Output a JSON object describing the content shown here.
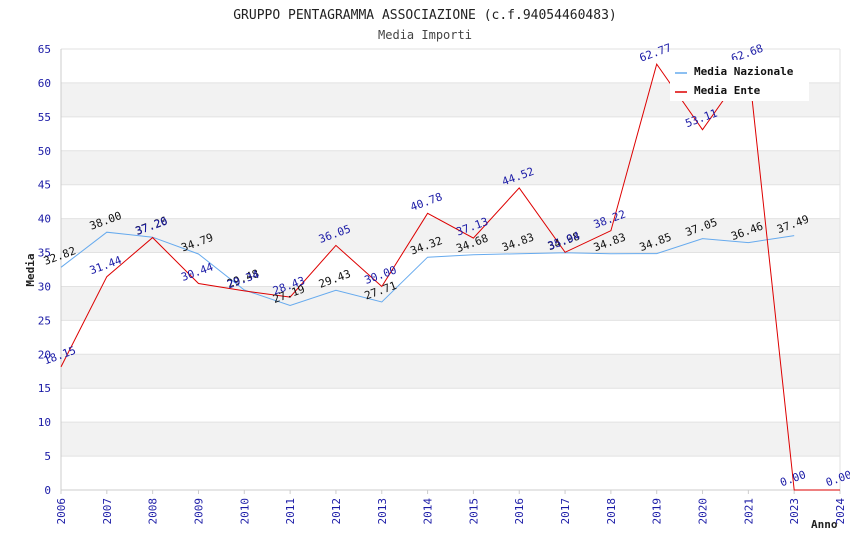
{
  "chart_data": {
    "type": "line",
    "title": "GRUPPO PENTAGRAMMA ASSOCIAZIONE (c.f.94054460483)",
    "subtitle": "Media Importi",
    "xlabel": "Anno",
    "ylabel": "Media",
    "ylim": [
      0,
      65
    ],
    "yticks": [
      "0",
      "5",
      "10",
      "15",
      "20",
      "25",
      "30",
      "35",
      "40",
      "45",
      "50",
      "55",
      "60",
      "65"
    ],
    "x": [
      "2006",
      "2007",
      "2008",
      "2009",
      "2010",
      "2011",
      "2012",
      "2013",
      "2014",
      "2015",
      "2016",
      "2017",
      "2018",
      "2019",
      "2020",
      "2021",
      "2023",
      "2024"
    ],
    "grid": "horizontal-bands",
    "legend_position": "top-right",
    "series": [
      {
        "name": "Media Nazionale",
        "color": "#66aaee",
        "label_color": "#111111",
        "values": [
          32.82,
          38.0,
          37.26,
          34.79,
          29.48,
          27.19,
          29.43,
          27.71,
          34.32,
          34.68,
          34.83,
          34.98,
          34.83,
          34.85,
          37.05,
          36.46,
          37.49,
          null
        ],
        "labels": [
          "32.82",
          "38.00",
          "37.26",
          "34.79",
          "29.48",
          "27.19",
          "29.43",
          "27.71",
          "34.32",
          "34.68",
          "34.83",
          "34.98",
          "34.83",
          "34.85",
          "37.05",
          "36.46",
          "37.49",
          null
        ]
      },
      {
        "name": "Media Ente",
        "color": "#dd0000",
        "label_color": "#1a1aa6",
        "values": [
          18.15,
          31.44,
          37.2,
          30.44,
          29.34,
          28.43,
          36.05,
          30.0,
          40.78,
          37.13,
          44.52,
          35.04,
          38.22,
          62.77,
          53.11,
          62.68,
          0.0,
          0.0
        ],
        "labels": [
          "18.15",
          "31.44",
          "37.20",
          "30.44",
          "29.34",
          "28.43",
          "36.05",
          "30.00",
          "40.78",
          "37.13",
          "44.52",
          "35.04",
          "38.22",
          "62.77",
          "53.11",
          "62.68",
          "0.00",
          "0.00"
        ]
      }
    ]
  }
}
